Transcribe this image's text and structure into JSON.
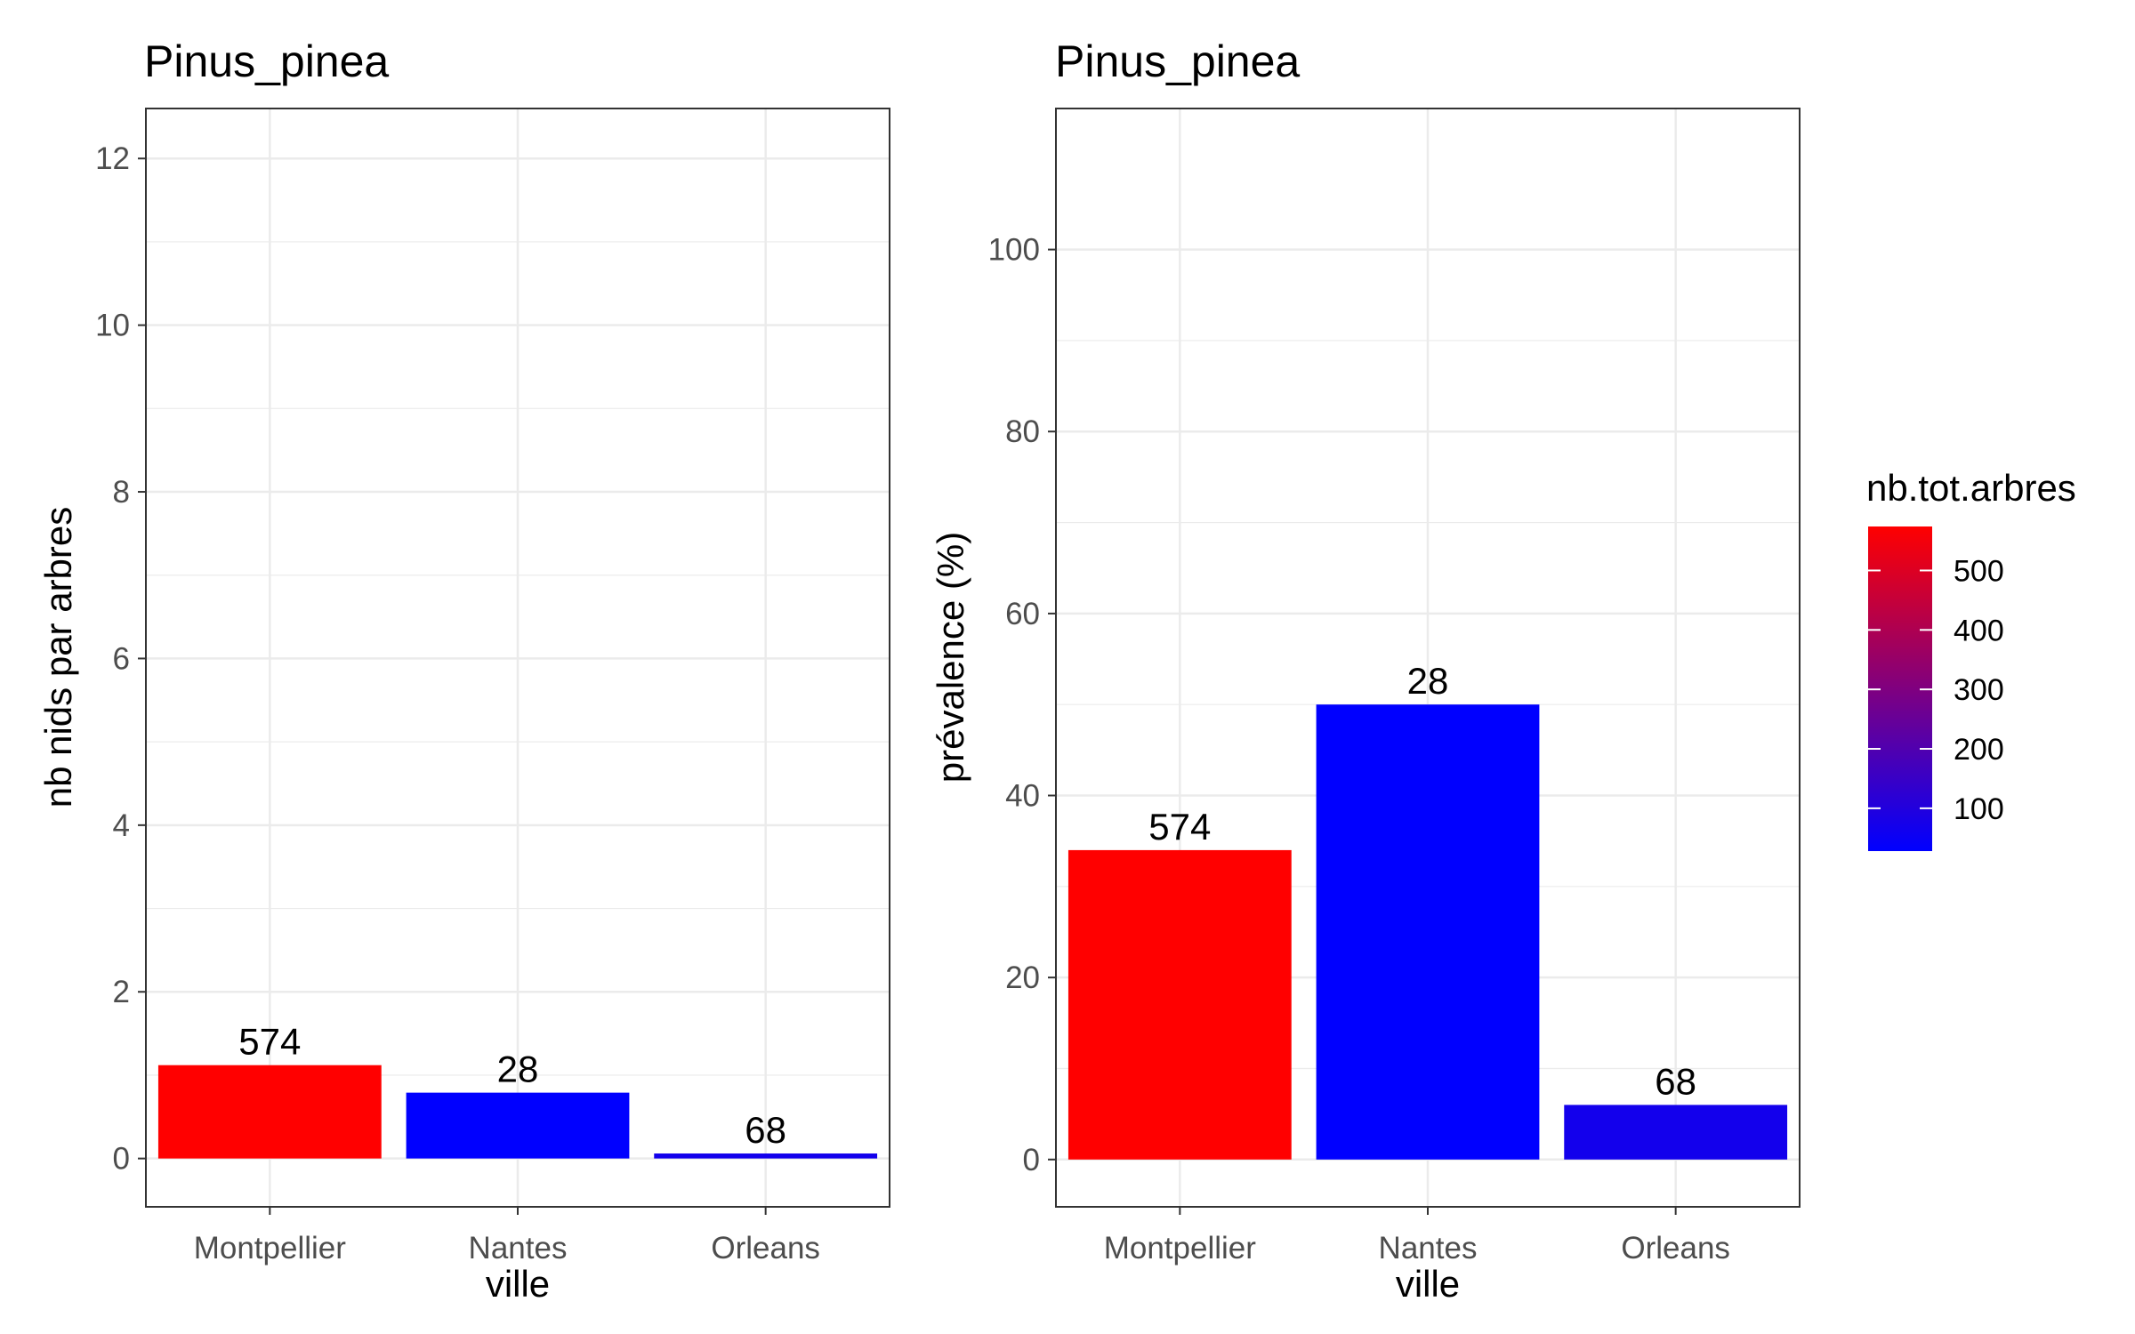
{
  "chart_data": [
    {
      "type": "bar",
      "title": "Pinus_pinea",
      "xlabel": "ville",
      "ylabel": "nb nids par arbres",
      "categories": [
        "Montpellier",
        "Nantes",
        "Orleans"
      ],
      "values": [
        1.12,
        0.79,
        0.06
      ],
      "bar_labels": [
        "574",
        "28",
        "68"
      ],
      "fill_values": [
        574,
        28,
        68
      ],
      "ylim": [
        -0.58,
        12.6
      ],
      "yticks": [
        0,
        2,
        4,
        6,
        8,
        10,
        12
      ],
      "grid": true
    },
    {
      "type": "bar",
      "title": "Pinus_pinea",
      "xlabel": "ville",
      "ylabel": "prévalence (%)",
      "categories": [
        "Montpellier",
        "Nantes",
        "Orleans"
      ],
      "values": [
        34,
        50,
        6
      ],
      "bar_labels": [
        "574",
        "28",
        "68"
      ],
      "fill_values": [
        574,
        28,
        68
      ],
      "ylim": [
        -5.2,
        115.5
      ],
      "yticks": [
        0,
        20,
        40,
        60,
        80,
        100
      ],
      "grid": true
    }
  ],
  "legend": {
    "title": "nb.tot.arbres",
    "placement": "right",
    "breaks": [
      100,
      200,
      300,
      400,
      500
    ],
    "range": [
      28,
      574
    ],
    "low_color": "#0000ff",
    "high_color": "#ff0000"
  },
  "colors": {
    "panel_border": "#333333",
    "grid": "#ebebeb",
    "tick": "#333333"
  }
}
